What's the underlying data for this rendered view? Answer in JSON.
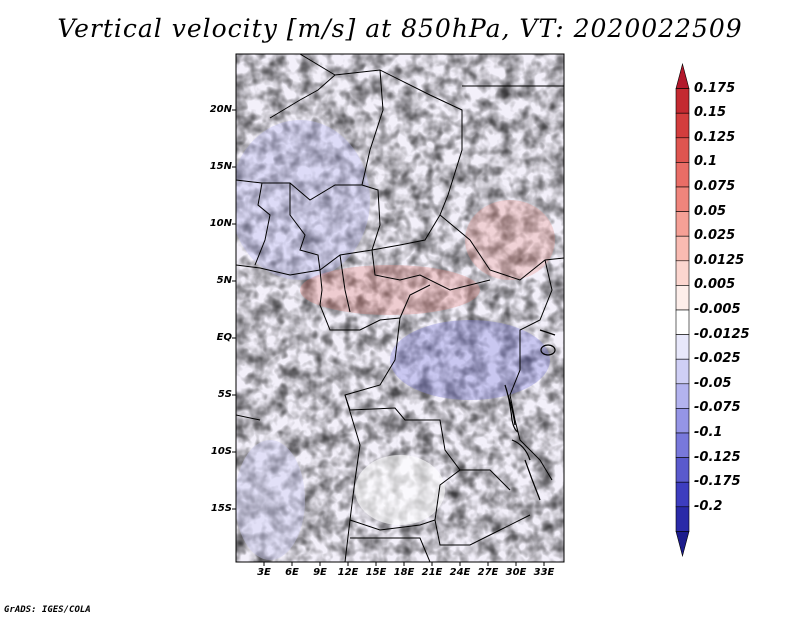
{
  "title": "Vertical velocity [m/s] at 850hPa, VT: 2020022509",
  "lat_labels": [
    "20N",
    "15N",
    "10N",
    "5N",
    "EQ",
    "5S",
    "10S",
    "15S"
  ],
  "lon_labels": [
    "3E",
    "6E",
    "9E",
    "12E",
    "15E",
    "18E",
    "21E",
    "24E",
    "27E",
    "30E",
    "33E"
  ],
  "colorbar": {
    "labels": [
      "0.175",
      "0.15",
      "0.125",
      "0.1",
      "0.075",
      "0.05",
      "0.025",
      "0.0125",
      "0.005",
      "-0.005",
      "-0.0125",
      "-0.025",
      "-0.05",
      "-0.075",
      "-0.1",
      "-0.125",
      "-0.175",
      "-0.2"
    ],
    "colors": [
      "#b2182b",
      "#c42a31",
      "#d33d3d",
      "#df5550",
      "#e96d66",
      "#f0857c",
      "#f5a096",
      "#f9bbb2",
      "#fcd6cf",
      "#fdeeea",
      "#ffffff",
      "#e8e8fb",
      "#cfcff5",
      "#b3b3ef",
      "#9595e6",
      "#7878db",
      "#5a5acd",
      "#3d3dbf",
      "#2a2aa8",
      "#1c1c8c"
    ]
  },
  "credit": "GrADS: IGES/COLA"
}
